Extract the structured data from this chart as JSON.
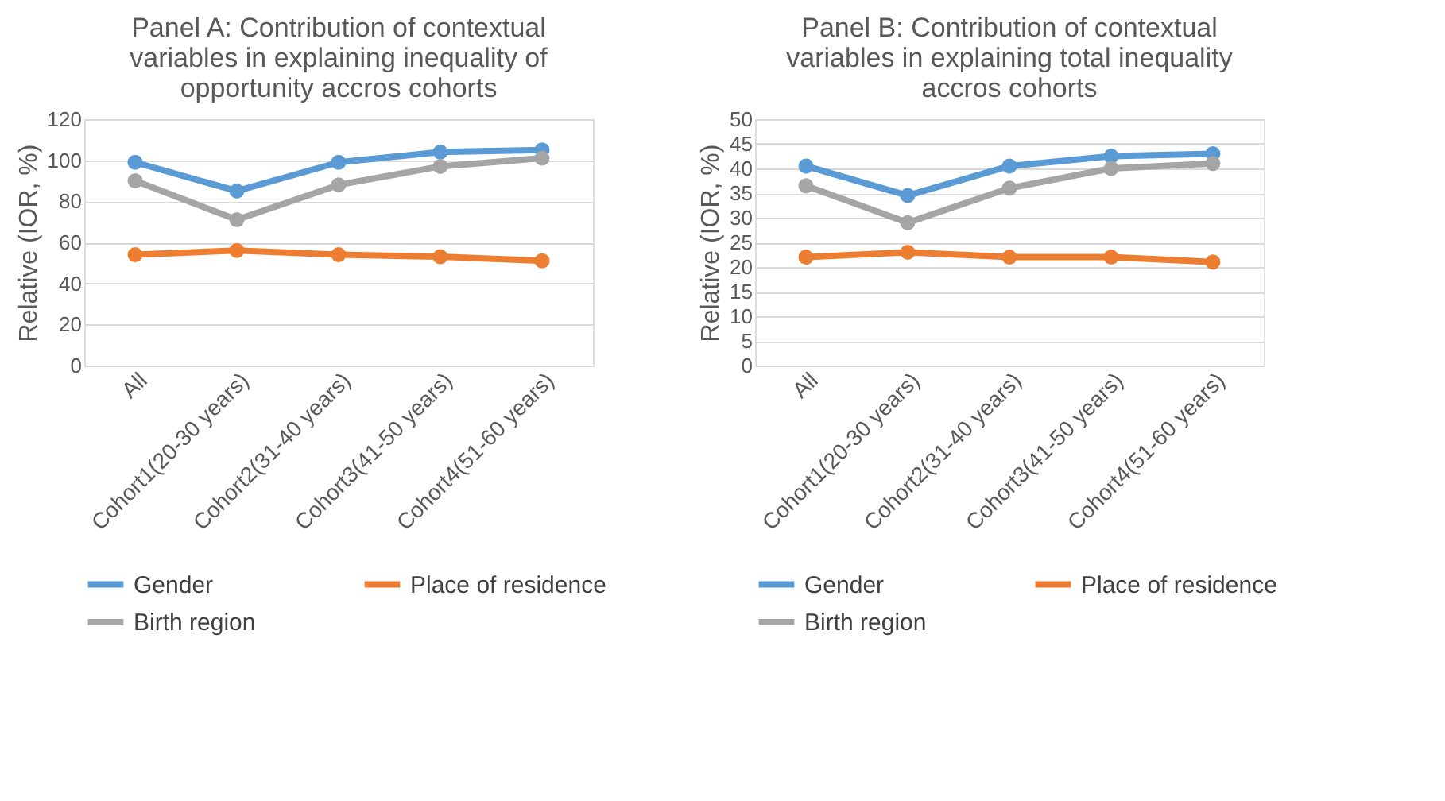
{
  "chart_data": [
    {
      "type": "line",
      "title": "Panel A: Contribution of contextual variables in explaining inequality of opportunity accros cohorts",
      "ylabel": "Relative (IOR, %)",
      "categories": [
        "All",
        "Cohort1(20-30 years)",
        "Cohort2(31-40 years)",
        "Cohort3(41-50 years)",
        "Cohort4(51-60 years)"
      ],
      "ylim": [
        0,
        120
      ],
      "yticks": [
        0,
        20,
        40,
        60,
        80,
        100,
        120
      ],
      "grid": "y",
      "legend": "bottom",
      "marker": "circle",
      "line_style": "solid",
      "series": [
        {
          "name": "Gender",
          "color": "#5b9bd5",
          "values": [
            99,
            85,
            99,
            104,
            105
          ]
        },
        {
          "name": "Place of residence",
          "color": "#ed7d31",
          "values": [
            54,
            56,
            54,
            53,
            51
          ]
        },
        {
          "name": "Birth region",
          "color": "#a5a5a5",
          "values": [
            90,
            71,
            88,
            97,
            101
          ]
        }
      ]
    },
    {
      "type": "line",
      "title": "Panel B: Contribution of contextual variables in explaining total inequality accros cohorts",
      "ylabel": "Relative (IOR, %)",
      "categories": [
        "All",
        "Cohort1(20-30 years)",
        "Cohort2(31-40 years)",
        "Cohort3(41-50 years)",
        "Cohort4(51-60 years)"
      ],
      "ylim": [
        0,
        50
      ],
      "yticks": [
        0,
        5,
        10,
        15,
        20,
        25,
        30,
        35,
        40,
        45,
        50
      ],
      "grid": "y",
      "legend": "bottom",
      "marker": "circle",
      "line_style": "solid",
      "series": [
        {
          "name": "Gender",
          "color": "#5b9bd5",
          "values": [
            40.5,
            34.5,
            40.5,
            42.5,
            43
          ]
        },
        {
          "name": "Place of residence",
          "color": "#ed7d31",
          "values": [
            22,
            23,
            22,
            22,
            21
          ]
        },
        {
          "name": "Birth region",
          "color": "#a5a5a5",
          "values": [
            36.5,
            29,
            36,
            40,
            41
          ]
        }
      ]
    }
  ]
}
